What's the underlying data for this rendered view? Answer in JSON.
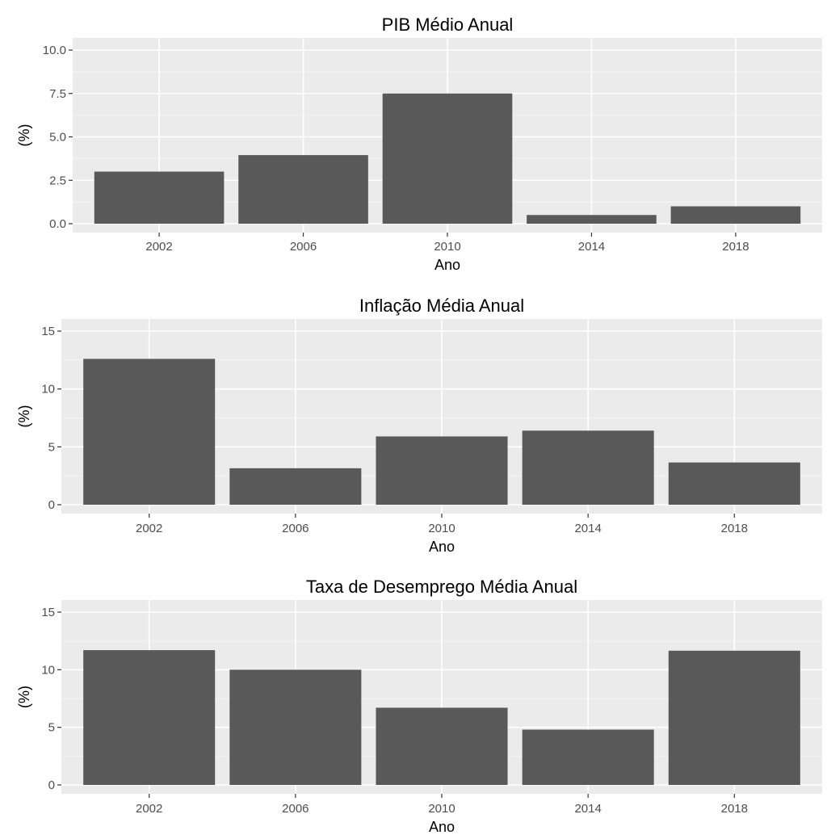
{
  "chart_data": [
    {
      "type": "bar",
      "title": "PIB Médio Anual",
      "xlabel": "Ano",
      "ylabel": "(%)",
      "categories": [
        "2002",
        "2006",
        "2010",
        "2014",
        "2018"
      ],
      "values": [
        3.0,
        3.95,
        7.5,
        0.5,
        1.0
      ],
      "ylim": [
        0,
        10
      ],
      "yticks": [
        "0.0",
        "2.5",
        "5.0",
        "7.5",
        "10.0"
      ],
      "grid": true,
      "bar_color": "#595959",
      "panel_color": "#ebebeb"
    },
    {
      "type": "bar",
      "title": "Inflação Média Anual",
      "xlabel": "Ano",
      "ylabel": "(%)",
      "categories": [
        "2002",
        "2006",
        "2010",
        "2014",
        "2018"
      ],
      "values": [
        12.6,
        3.15,
        5.9,
        6.4,
        3.65
      ],
      "ylim": [
        0,
        15
      ],
      "yticks": [
        "0",
        "5",
        "10",
        "15"
      ],
      "grid": true,
      "bar_color": "#595959",
      "panel_color": "#ebebeb"
    },
    {
      "type": "bar",
      "title": "Taxa de Desemprego Média Anual",
      "xlabel": "Ano",
      "ylabel": "(%)",
      "categories": [
        "2002",
        "2006",
        "2010",
        "2014",
        "2018"
      ],
      "values": [
        11.7,
        10.0,
        6.7,
        4.8,
        11.65
      ],
      "ylim": [
        0,
        15
      ],
      "yticks": [
        "0",
        "5",
        "10",
        "15"
      ],
      "grid": true,
      "bar_color": "#595959",
      "panel_color": "#ebebeb"
    }
  ]
}
